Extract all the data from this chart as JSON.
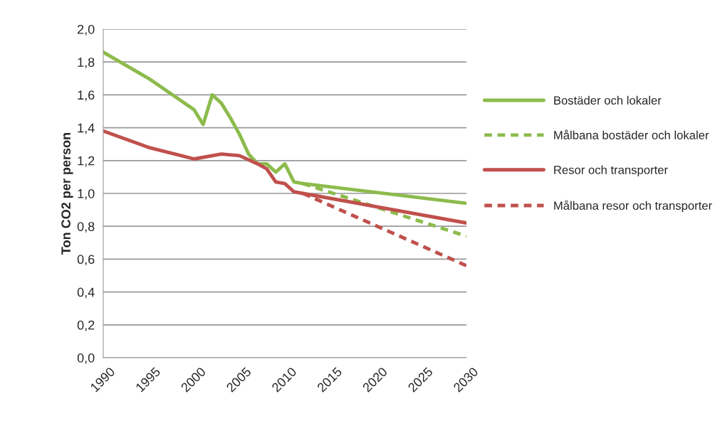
{
  "chart_data": {
    "type": "line",
    "ylabel": "Ton CO2 per person",
    "xlim": [
      1990,
      2030
    ],
    "xticks": [
      1990,
      1995,
      2000,
      2005,
      2010,
      2015,
      2020,
      2025,
      2030
    ],
    "ylim": [
      0,
      2.0
    ],
    "yticks": [
      {
        "value": 0,
        "label": "0,0"
      },
      {
        "value": 0.2,
        "label": "0,2"
      },
      {
        "value": 0.4,
        "label": "0,4"
      },
      {
        "value": 0.6,
        "label": "0,6"
      },
      {
        "value": 0.8,
        "label": "0,8"
      },
      {
        "value": 1.0,
        "label": "1,0"
      },
      {
        "value": 1.2,
        "label": "1,2"
      },
      {
        "value": 1.4,
        "label": "1,4"
      },
      {
        "value": 1.6,
        "label": "1,6"
      },
      {
        "value": 1.8,
        "label": "1,8"
      },
      {
        "value": 2.0,
        "label": "2,0"
      }
    ],
    "grid": "y",
    "legend": "right",
    "series": [
      {
        "name": "Bostäder och lokaler",
        "color": "#8cbb4c",
        "line_style": "solid",
        "x": [
          1990,
          1995,
          2000,
          2001,
          2002,
          2003,
          2004,
          2005,
          2006,
          2007,
          2008,
          2009,
          2010,
          2011,
          2012,
          2030
        ],
        "values": [
          1.86,
          1.7,
          1.51,
          1.42,
          1.6,
          1.55,
          1.46,
          1.36,
          1.24,
          1.18,
          1.18,
          1.13,
          1.18,
          1.07,
          1.06,
          0.94
        ]
      },
      {
        "name": "Målbana bostäder och lokaler",
        "color": "#8cbb4c",
        "line_style": "dashed",
        "x": [
          2012,
          2030
        ],
        "values": [
          1.06,
          0.74
        ]
      },
      {
        "name": "Resor och transporter",
        "color": "#c0504d",
        "line_style": "solid",
        "x": [
          1990,
          1995,
          2000,
          2003,
          2005,
          2007,
          2008,
          2009,
          2010,
          2011,
          2012,
          2030
        ],
        "values": [
          1.38,
          1.28,
          1.21,
          1.24,
          1.23,
          1.18,
          1.15,
          1.07,
          1.06,
          1.01,
          1.0,
          0.82
        ]
      },
      {
        "name": "Målbana resor och transporter",
        "color": "#c0504d",
        "line_style": "dashed",
        "x": [
          2012,
          2030
        ],
        "values": [
          1.0,
          0.56
        ]
      }
    ]
  }
}
